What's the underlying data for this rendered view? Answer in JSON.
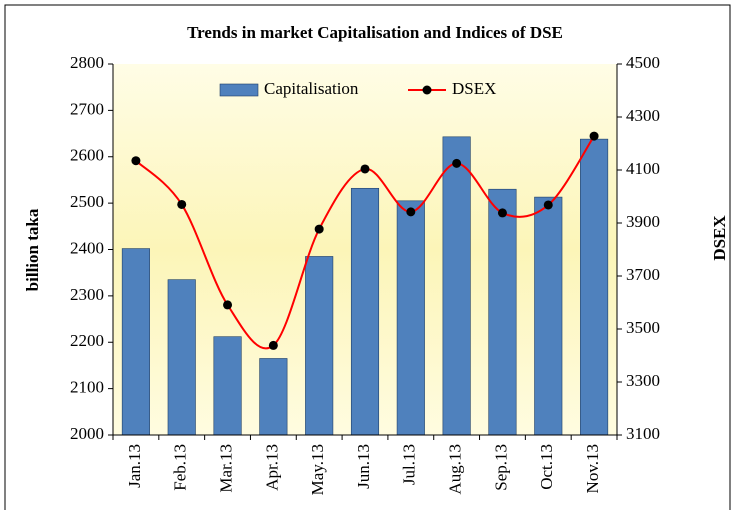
{
  "chart_data": {
    "type": "combo",
    "title": "Trends in market Capitalisation and Indices of DSE",
    "y_label": "billion taka",
    "y2_label": "DSEX",
    "categories": [
      "Jan.13",
      "Feb.13",
      "Mar.13",
      "Apr.13",
      "May.13",
      "Jun.13",
      "Jul.13",
      "Aug.13",
      "Sep.13",
      "Oct.13",
      "Nov.13"
    ],
    "series": [
      {
        "name": "Capitalisation",
        "type": "bar",
        "color": "#4f81bd",
        "values": [
          2402,
          2335,
          2212,
          2165,
          2385,
          2532,
          2505,
          2643,
          2530,
          2513,
          2638
        ]
      },
      {
        "name": "DSEX",
        "type": "line",
        "axis": "y2",
        "color": "#ff0000",
        "marker_color": "#000000",
        "values": [
          4135,
          3970,
          3591,
          3438,
          3877,
          4104,
          3942,
          4125,
          3938,
          3968,
          4228
        ]
      }
    ],
    "ylim": [
      2000,
      2800
    ],
    "yticks": [
      2000,
      2100,
      2200,
      2300,
      2400,
      2500,
      2600,
      2700,
      2800
    ],
    "y2lim": [
      3100,
      4500
    ],
    "y2ticks": [
      3100,
      3300,
      3500,
      3700,
      3900,
      4100,
      4300,
      4500
    ],
    "grid": false,
    "legend": "top"
  }
}
